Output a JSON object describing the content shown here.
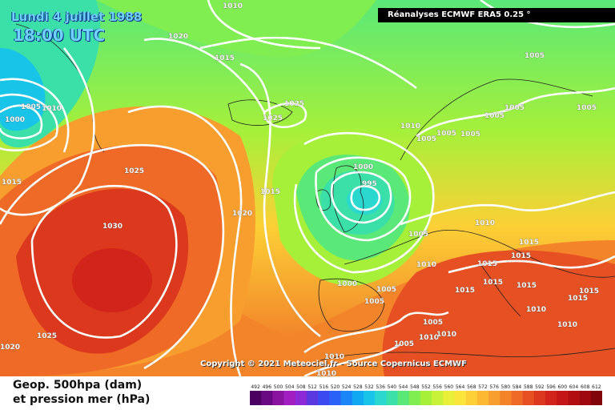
{
  "header": {
    "date": "Lundi 4 juillet 1988",
    "time": "18:00 UTC",
    "source": "Réanalyses ECMWF ERA5 0.25 °"
  },
  "footer": {
    "copyright": "Copyright © 2021 Meteociel.fr - Source Copernicus ECMWF",
    "legend_line1": "Geop. 500hpa (dam)",
    "legend_line2": "et pression mer (hPa)"
  },
  "scale": {
    "ticks": [
      "492",
      "496",
      "500",
      "504",
      "508",
      "512",
      "516",
      "520",
      "524",
      "528",
      "532",
      "536",
      "540",
      "544",
      "548",
      "552",
      "556",
      "560",
      "564",
      "568",
      "572",
      "576",
      "580",
      "584",
      "588",
      "592",
      "596",
      "600",
      "604",
      "608",
      "612"
    ],
    "colors": [
      "#4b0060",
      "#6a0a82",
      "#8a14a0",
      "#a21ebe",
      "#8b2ad6",
      "#5a3ae0",
      "#3a4af0",
      "#2a62f8",
      "#1a86f8",
      "#10a8f0",
      "#18c4e8",
      "#2ad8d0",
      "#3ae0a8",
      "#5ae878",
      "#80ee50",
      "#a6f03a",
      "#c8f238",
      "#e8f03a",
      "#fae63a",
      "#fcd036",
      "#fcb832",
      "#f89e2e",
      "#f4842a",
      "#ee6a26",
      "#e65022",
      "#dc381e",
      "#d2241a",
      "#c41616",
      "#b20e12",
      "#9e080e",
      "#80040a"
    ]
  },
  "pressure_labels": [
    {
      "text": "1010"
    },
    {
      "text": "1020"
    },
    {
      "text": "1015"
    },
    {
      "text": "1005"
    },
    {
      "text": "1010"
    },
    {
      "text": "1000"
    },
    {
      "text": "1025"
    },
    {
      "text": "1025"
    },
    {
      "text": "1025"
    },
    {
      "text": "1015"
    },
    {
      "text": "1030"
    },
    {
      "text": "1015"
    },
    {
      "text": "1020"
    },
    {
      "text": "1025"
    },
    {
      "text": "1020"
    },
    {
      "text": "1000"
    },
    {
      "text": "995"
    },
    {
      "text": "1010"
    },
    {
      "text": "1005"
    },
    {
      "text": "1005"
    },
    {
      "text": "1005"
    },
    {
      "text": "1005"
    },
    {
      "text": "1005"
    },
    {
      "text": "1005"
    },
    {
      "text": "1010"
    },
    {
      "text": "1005"
    },
    {
      "text": "1010"
    },
    {
      "text": "1015"
    },
    {
      "text": "1015"
    },
    {
      "text": "1015"
    },
    {
      "text": "1015"
    },
    {
      "text": "1015"
    },
    {
      "text": "1015"
    },
    {
      "text": "1015"
    },
    {
      "text": "1000"
    },
    {
      "text": "1005"
    },
    {
      "text": "1005"
    },
    {
      "text": "1005"
    },
    {
      "text": "1010"
    },
    {
      "text": "1005"
    },
    {
      "text": "1010"
    },
    {
      "text": "1010"
    },
    {
      "text": "1010"
    },
    {
      "text": "1010"
    },
    {
      "text": "1015"
    },
    {
      "text": "1005"
    },
    {
      "text": "1010"
    }
  ]
}
